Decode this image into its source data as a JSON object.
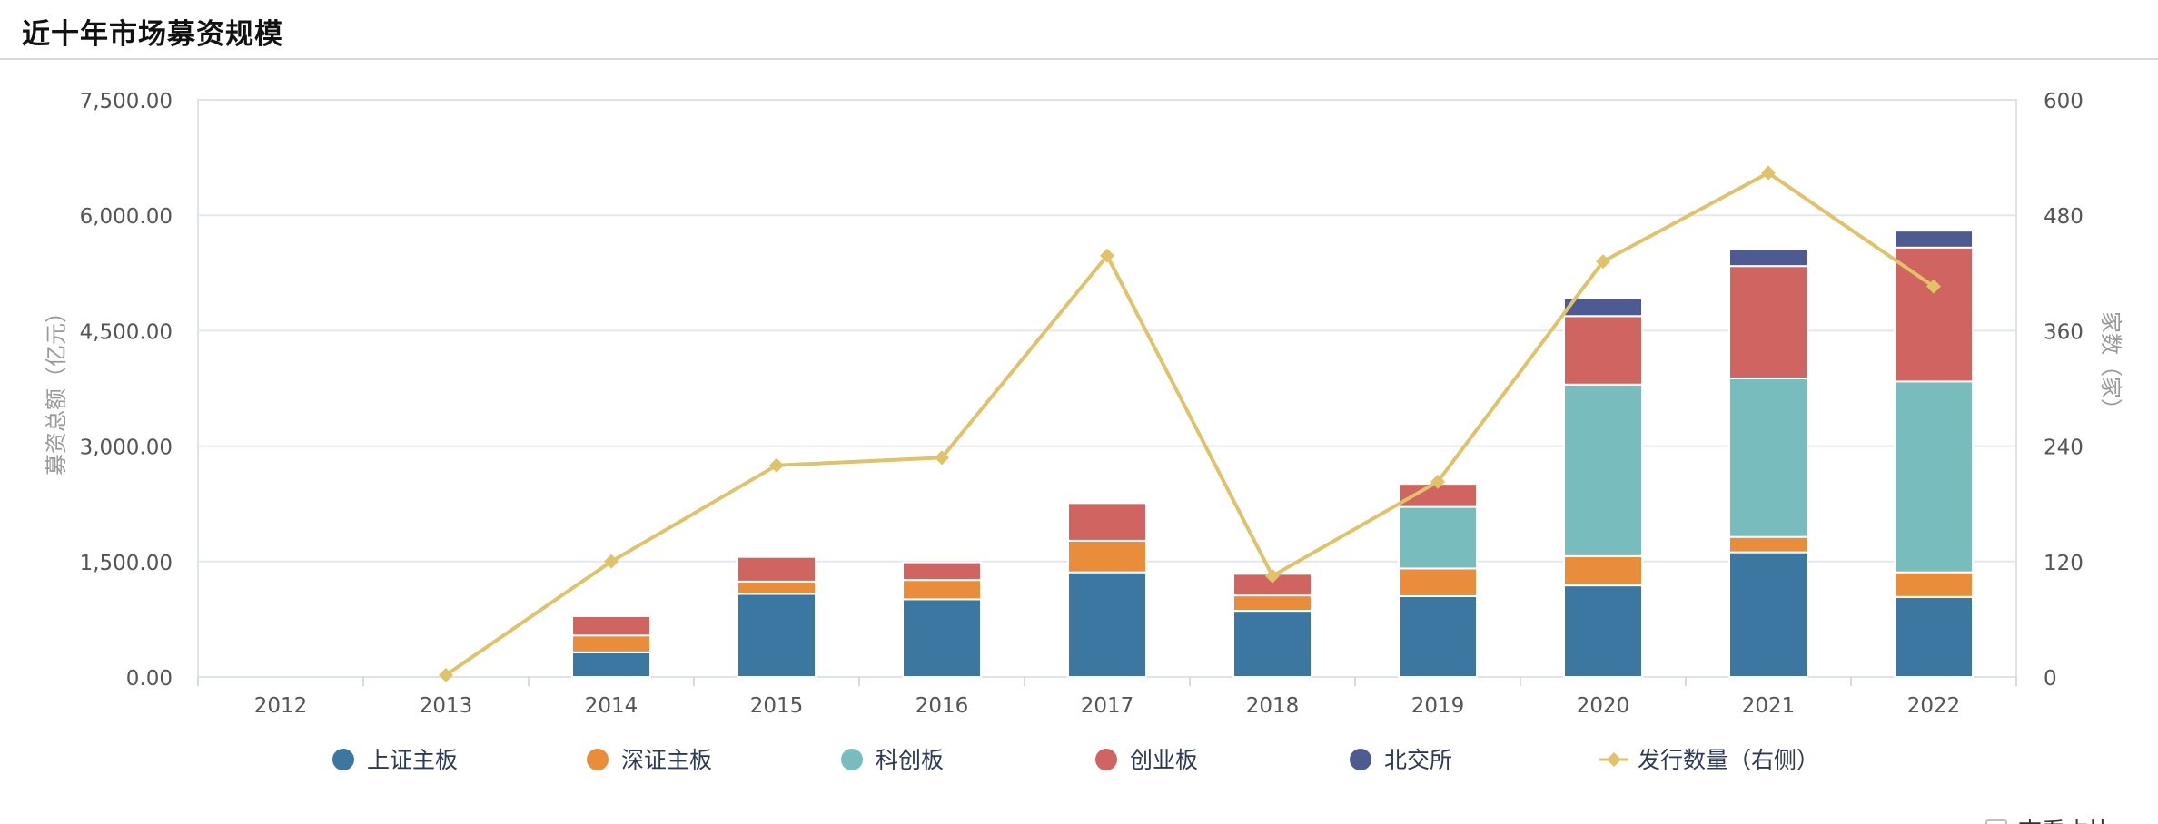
{
  "header": {
    "title": "近十年市场募资规模"
  },
  "controls": {
    "ratio_toggle_label": "查看占比"
  },
  "chart_data": {
    "type": "bar",
    "stacked": true,
    "categories": [
      "2012",
      "2013",
      "2014",
      "2015",
      "2016",
      "2017",
      "2018",
      "2019",
      "2020",
      "2021",
      "2022"
    ],
    "ylabel": "募资总额（亿元）",
    "y2label": "家数（家）",
    "ylim": [
      0,
      7500
    ],
    "y2lim": [
      0,
      600
    ],
    "yticks": [
      "0.00",
      "1,500.00",
      "3,000.00",
      "4,500.00",
      "6,000.00",
      "7,500.00"
    ],
    "y2ticks": [
      "0",
      "120",
      "240",
      "360",
      "480",
      "600"
    ],
    "grid": true,
    "legend_position": "bottom",
    "series": [
      {
        "name": "上证主板",
        "color": "#3b77a0",
        "values": [
          0,
          0,
          320,
          1080,
          1010,
          1360,
          860,
          1050,
          1190,
          1620,
          1040
        ]
      },
      {
        "name": "深证主板",
        "color": "#ea8d3b",
        "values": [
          0,
          0,
          220,
          160,
          250,
          410,
          200,
          360,
          380,
          200,
          320
        ]
      },
      {
        "name": "科创板",
        "color": "#78bcbd",
        "values": [
          0,
          0,
          0,
          0,
          0,
          0,
          0,
          800,
          2230,
          2060,
          2480
        ]
      },
      {
        "name": "创业板",
        "color": "#d06460",
        "values": [
          0,
          0,
          250,
          320,
          230,
          490,
          280,
          300,
          890,
          1460,
          1740
        ]
      },
      {
        "name": "北交所",
        "color": "#4e5b92",
        "values": [
          0,
          0,
          0,
          0,
          0,
          0,
          0,
          0,
          230,
          220,
          220
        ]
      }
    ],
    "line_series": {
      "name": "发行数量（右侧）",
      "color": "#e0c268",
      "axis": "right",
      "values": [
        null,
        2,
        120,
        220,
        228,
        438,
        105,
        203,
        432,
        524,
        406
      ]
    }
  }
}
